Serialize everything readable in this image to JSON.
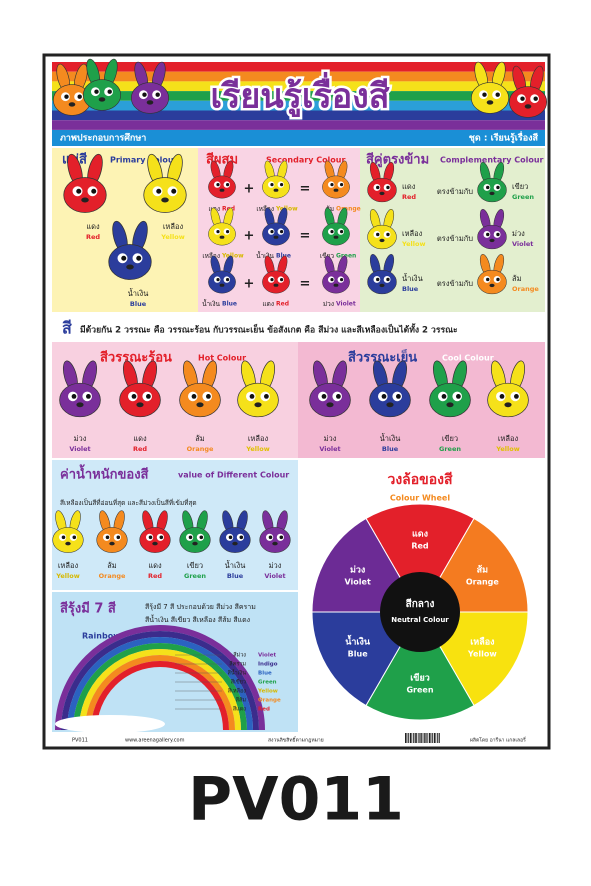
{
  "header": {
    "title": "เรียนรู้เรื่องสี",
    "subtitle_left": "ภาพประกอบการศึกษา",
    "subtitle_right": "ชุด : เรียนรู้เรื่องสี"
  },
  "primary": {
    "title": "แม่สี",
    "subtitle": "Primary Colour",
    "items": [
      {
        "th": "แดง",
        "en": "Red",
        "color": "#e3202a"
      },
      {
        "th": "เหลือง",
        "en": "Yellow",
        "color": "#f5e11a"
      },
      {
        "th": "น้ำเงิน",
        "en": "Blue",
        "color": "#2b3d9c"
      }
    ]
  },
  "secondary": {
    "title": "สีผสม",
    "subtitle": "Secondary Colour",
    "plus": "+",
    "equals": "=",
    "rows": [
      [
        {
          "th": "แดง",
          "en": "Red",
          "color": "#e3202a"
        },
        {
          "th": "เหลือง",
          "en": "Yellow",
          "color": "#f5e11a"
        },
        {
          "th": "ส้ม",
          "en": "Orange",
          "color": "#f48a1f"
        }
      ],
      [
        {
          "th": "เหลือง",
          "en": "Yellow",
          "color": "#f5e11a"
        },
        {
          "th": "น้ำเงิน",
          "en": "Blue",
          "color": "#2b3d9c"
        },
        {
          "th": "เขียว",
          "en": "Green",
          "color": "#1fa04a"
        }
      ],
      [
        {
          "th": "น้ำเงิน",
          "en": "Blue",
          "color": "#2b3d9c"
        },
        {
          "th": "แดง",
          "en": "Red",
          "color": "#e3202a"
        },
        {
          "th": "ม่วง",
          "en": "Violet",
          "color": "#7a2f9a"
        }
      ]
    ]
  },
  "complementary": {
    "title": "สีคู่ตรงข้าม",
    "subtitle": "Complementary Colour",
    "connector": "ตรงข้ามกับ",
    "rows": [
      [
        {
          "th": "แดง",
          "en": "Red",
          "color": "#e3202a"
        },
        {
          "th": "เขียว",
          "en": "Green",
          "color": "#1fa04a"
        }
      ],
      [
        {
          "th": "เหลือง",
          "en": "Yellow",
          "color": "#f5e11a"
        },
        {
          "th": "ม่วง",
          "en": "Violet",
          "color": "#7a2f9a"
        }
      ],
      [
        {
          "th": "น้ำเงิน",
          "en": "Blue",
          "color": "#2b3d9c"
        },
        {
          "th": "ส้ม",
          "en": "Orange",
          "color": "#f48a1f"
        }
      ]
    ]
  },
  "note": {
    "lead": "สี",
    "text": "มีด้วยกัน 2 วรรณะ คือ วรรณะร้อน กับวรรณะเย็น ข้อสังเกต คือ สีม่วง และสีเหลืองเป็นได้ทั้ง 2 วรรณะ"
  },
  "hot": {
    "title": "สีวรรณะร้อน",
    "subtitle": "Hot Colour",
    "items": [
      {
        "th": "ม่วง",
        "en": "Violet",
        "color": "#7a2f9a"
      },
      {
        "th": "แดง",
        "en": "Red",
        "color": "#e3202a"
      },
      {
        "th": "ส้ม",
        "en": "Orange",
        "color": "#f48a1f"
      },
      {
        "th": "เหลือง",
        "en": "Yellow",
        "color": "#f5e11a"
      }
    ]
  },
  "cool": {
    "title": "สีวรรณะเย็น",
    "subtitle": "Cool Colour",
    "items": [
      {
        "th": "ม่วง",
        "en": "Violet",
        "color": "#7a2f9a"
      },
      {
        "th": "น้ำเงิน",
        "en": "Blue",
        "color": "#2b3d9c"
      },
      {
        "th": "เขียว",
        "en": "Green",
        "color": "#1fa04a"
      },
      {
        "th": "เหลือง",
        "en": "Yellow",
        "color": "#f5e11a"
      }
    ]
  },
  "value": {
    "title": "ค่าน้ำหนักของสี",
    "subtitle": "value of Different Colour",
    "note": "สีเหลืองเป็นสีที่อ่อนที่สุด และสีม่วงเป็นสีที่เข้มที่สุด",
    "items": [
      {
        "th": "เหลือง",
        "en": "Yellow",
        "color": "#f5e11a"
      },
      {
        "th": "ส้ม",
        "en": "Orange",
        "color": "#f48a1f"
      },
      {
        "th": "แดง",
        "en": "Red",
        "color": "#e3202a"
      },
      {
        "th": "เขียว",
        "en": "Green",
        "color": "#1fa04a"
      },
      {
        "th": "น้ำเงิน",
        "en": "Blue",
        "color": "#2b3d9c"
      },
      {
        "th": "ม่วง",
        "en": "Violet",
        "color": "#7a2f9a"
      }
    ]
  },
  "rainbow": {
    "title": "สีรุ้งมี 7 สี",
    "description": [
      "สีรุ้งมี 7 สี ประกอบด้วย สีม่วง สีคราม",
      "สีน้ำเงิน สีเขียว สีเหลือง สีส้ม สีแดง"
    ],
    "label": "Rainbow",
    "bands": [
      {
        "th": "สีม่วง",
        "en": "Violet",
        "color": "#7a2f9a"
      },
      {
        "th": "สีคราม",
        "en": "Indigo",
        "color": "#3b2c8c"
      },
      {
        "th": "สีน้ำเงิน",
        "en": "Blue",
        "color": "#2b62c0"
      },
      {
        "th": "สีเขียว",
        "en": "Green",
        "color": "#1fa04a"
      },
      {
        "th": "สีเหลือง",
        "en": "Yellow",
        "color": "#f5e11a"
      },
      {
        "th": "สีส้ม",
        "en": "Orange",
        "color": "#f48a1f"
      },
      {
        "th": "สีแดง",
        "en": "Red",
        "color": "#e3202a"
      }
    ]
  },
  "wheel": {
    "title": "วงล้อของสี",
    "subtitle": "Colour Wheel",
    "center_th": "สีกลาง",
    "center_en": "Neutral Colour",
    "segments": [
      {
        "th": "แดง",
        "en": "Red",
        "color": "#e3202a"
      },
      {
        "th": "ส้ม",
        "en": "Orange",
        "color": "#f47b20"
      },
      {
        "th": "เหลือง",
        "en": "Yellow",
        "color": "#f8e20f"
      },
      {
        "th": "เขียว",
        "en": "Green",
        "color": "#1fa04a"
      },
      {
        "th": "น้ำเงิน",
        "en": "Blue",
        "color": "#2b3d9c"
      },
      {
        "th": "ม่วง",
        "en": "Violet",
        "color": "#6c2b95"
      }
    ]
  },
  "footer": {
    "code": "PV011",
    "site": "www.areenagallery.com",
    "copyright": "สงวนลิขสิทธิ์ตามกฎหมาย",
    "producer": "ผลิตโดย อารีนา แกลเลอรี่"
  },
  "product_code": "PV011"
}
